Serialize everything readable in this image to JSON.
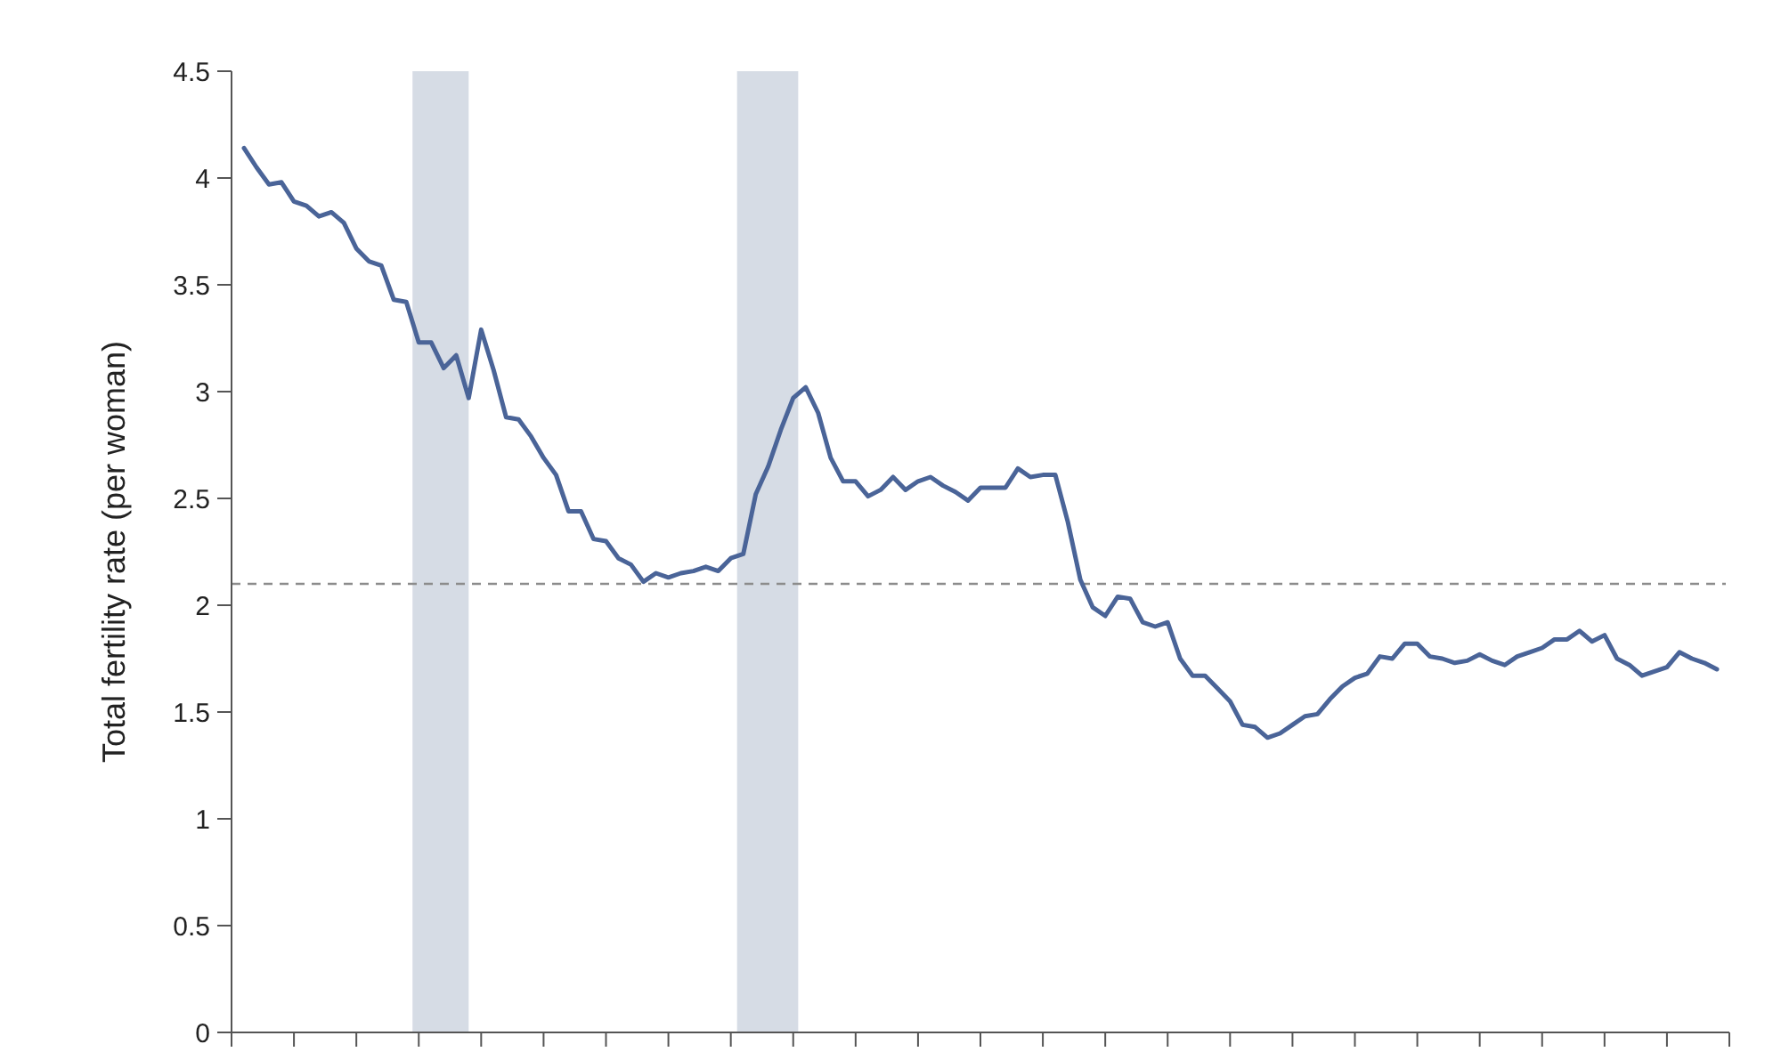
{
  "chart_data": {
    "type": "line",
    "ylabel": "Total fertility rate (per woman)",
    "categories": [
      null,
      null,
      null,
      null,
      null,
      null,
      null,
      null,
      null,
      null,
      null,
      null,
      null,
      null,
      null,
      null,
      null,
      null,
      null,
      null,
      null,
      null,
      null,
      null,
      null,
      null,
      null,
      null,
      null,
      null,
      null,
      null,
      null,
      null,
      null,
      null,
      null,
      null,
      null,
      null,
      null,
      null,
      null,
      null,
      null,
      null,
      null,
      null,
      null,
      null,
      null,
      null,
      null,
      null,
      null,
      null,
      null,
      null,
      null,
      null,
      null,
      null,
      null,
      null,
      null,
      null,
      null,
      null,
      null,
      null,
      null,
      null,
      null,
      null,
      null,
      null,
      null,
      null,
      null,
      null,
      null,
      null,
      null,
      null,
      null,
      null,
      null,
      null,
      null,
      null,
      null,
      null,
      null,
      null,
      null,
      null,
      null,
      null,
      null,
      null,
      null,
      null,
      null,
      null,
      null,
      null,
      null,
      null,
      null,
      null,
      null,
      null,
      null,
      null,
      null,
      null,
      null,
      null,
      null
    ],
    "series": [
      {
        "color": "#4a6498",
        "values": [
          4.14,
          4.05,
          3.97,
          3.98,
          3.89,
          3.87,
          3.82,
          3.84,
          3.79,
          3.67,
          3.61,
          3.59,
          3.43,
          3.42,
          3.23,
          3.23,
          3.11,
          3.17,
          2.97,
          3.29,
          3.1,
          2.88,
          2.87,
          2.79,
          2.69,
          2.61,
          2.44,
          2.44,
          2.31,
          2.3,
          2.22,
          2.19,
          2.11,
          2.15,
          2.13,
          2.15,
          2.16,
          2.18,
          2.16,
          2.22,
          2.24,
          2.52,
          2.65,
          2.82,
          2.97,
          3.02,
          2.9,
          2.69,
          2.58,
          2.58,
          2.51,
          2.54,
          2.6,
          2.54,
          2.58,
          2.6,
          2.56,
          2.53,
          2.49,
          2.55,
          2.55,
          2.55,
          2.64,
          2.6,
          2.61,
          2.61,
          2.39,
          2.12,
          1.99,
          1.95,
          2.04,
          2.03,
          1.92,
          1.9,
          1.92,
          1.75,
          1.67,
          1.67,
          1.61,
          1.55,
          1.44,
          1.43,
          1.38,
          1.4,
          1.44,
          1.48,
          1.49,
          1.56,
          1.62,
          1.66,
          1.68,
          1.76,
          1.75,
          1.82,
          1.82,
          1.76,
          1.75,
          1.73,
          1.74,
          1.77,
          1.74,
          1.72,
          1.76,
          1.78,
          1.8,
          1.84,
          1.84,
          1.88,
          1.83,
          1.86,
          1.75,
          1.72,
          1.67,
          1.69,
          1.71,
          1.78,
          1.75,
          1.73,
          1.7
        ]
      }
    ],
    "ylim": [
      0,
      4.5
    ],
    "yticks": [
      0,
      0.5,
      1,
      1.5,
      2,
      2.5,
      3,
      3.5,
      4,
      4.5
    ],
    "tick_labels": "y",
    "grid": false,
    "marker": "none",
    "line_style": "solid",
    "ref_lines": [
      {
        "axis": "y",
        "value": 2.1,
        "color": "#8c8c8c",
        "line_style": "dashed"
      }
    ]
  }
}
